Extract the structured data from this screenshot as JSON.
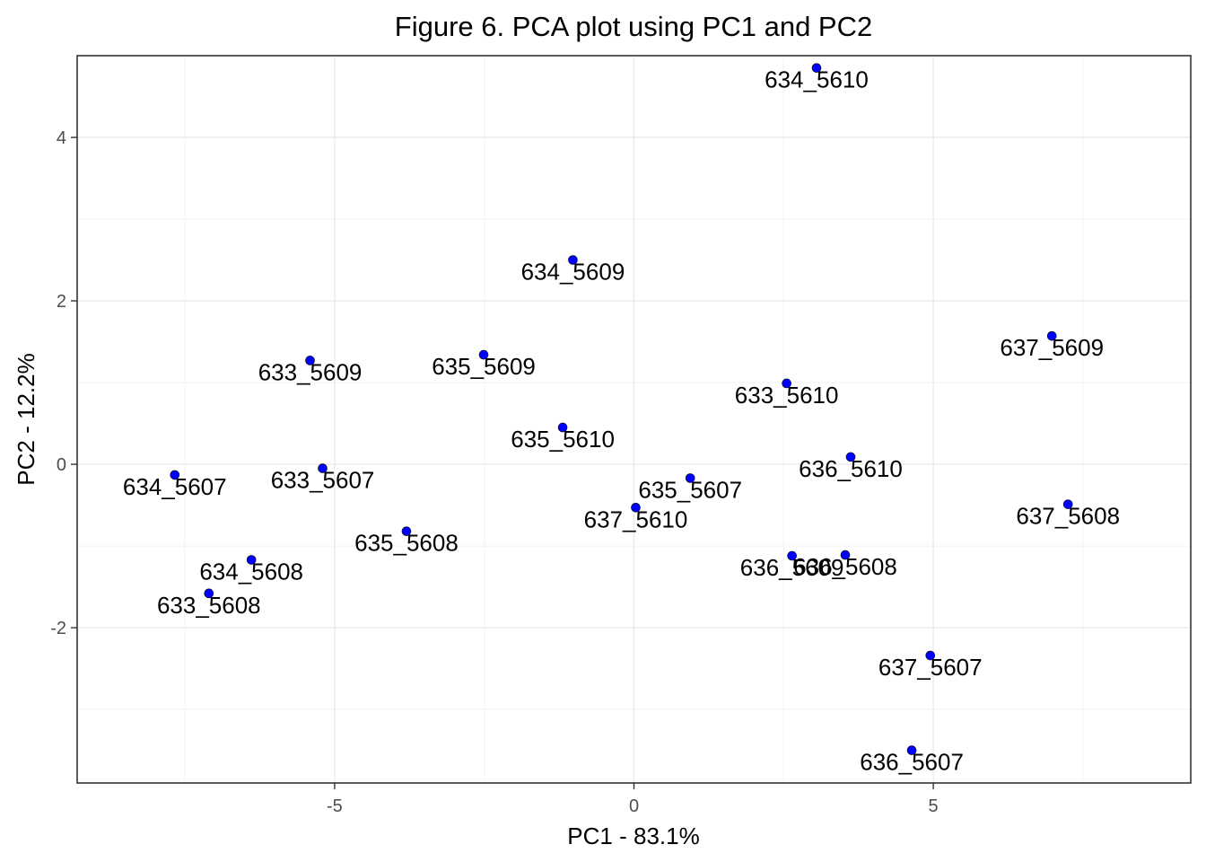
{
  "chart_data": {
    "type": "scatter",
    "title": "Figure 6. PCA plot using PC1 and PC2",
    "xlabel": "PC1 - 83.1%",
    "ylabel": "PC2 - 12.2%",
    "xlim": [
      -9.3,
      9.3
    ],
    "ylim": [
      -3.9,
      5.0
    ],
    "x_ticks": [
      -5,
      0,
      5
    ],
    "y_ticks": [
      -2,
      0,
      2,
      4
    ],
    "x_tick_labels": [
      "-5",
      "0",
      "5"
    ],
    "y_tick_labels": [
      "-2",
      "0",
      "2",
      "4"
    ],
    "grid": true,
    "point_color": "#0000ff",
    "points": [
      {
        "label": "634_5610",
        "x": 3.05,
        "y": 4.85
      },
      {
        "label": "634_5609",
        "x": -1.02,
        "y": 2.5
      },
      {
        "label": "637_5609",
        "x": 6.98,
        "y": 1.57
      },
      {
        "label": "633_5609",
        "x": -5.41,
        "y": 1.27
      },
      {
        "label": "635_5609",
        "x": -2.51,
        "y": 1.34
      },
      {
        "label": "633_5610",
        "x": 2.55,
        "y": 0.99
      },
      {
        "label": "635_5610",
        "x": -1.19,
        "y": 0.45
      },
      {
        "label": "636_5610",
        "x": 3.62,
        "y": 0.09
      },
      {
        "label": "634_5607",
        "x": -7.67,
        "y": -0.13
      },
      {
        "label": "633_5607",
        "x": -5.2,
        "y": -0.05
      },
      {
        "label": "635_5607",
        "x": 0.94,
        "y": -0.17
      },
      {
        "label": "637_5610",
        "x": 0.03,
        "y": -0.53
      },
      {
        "label": "637_5608",
        "x": 7.25,
        "y": -0.49
      },
      {
        "label": "635_5608",
        "x": -3.8,
        "y": -0.82
      },
      {
        "label": "636_5609",
        "x": 2.64,
        "y": -1.12
      },
      {
        "label": "636_5608",
        "x": 3.53,
        "y": -1.11
      },
      {
        "label": "634_5608",
        "x": -6.39,
        "y": -1.17
      },
      {
        "label": "633_5608",
        "x": -7.1,
        "y": -1.58
      },
      {
        "label": "637_5607",
        "x": 4.95,
        "y": -2.34
      },
      {
        "label": "636_5607",
        "x": 4.64,
        "y": -3.5
      }
    ]
  }
}
